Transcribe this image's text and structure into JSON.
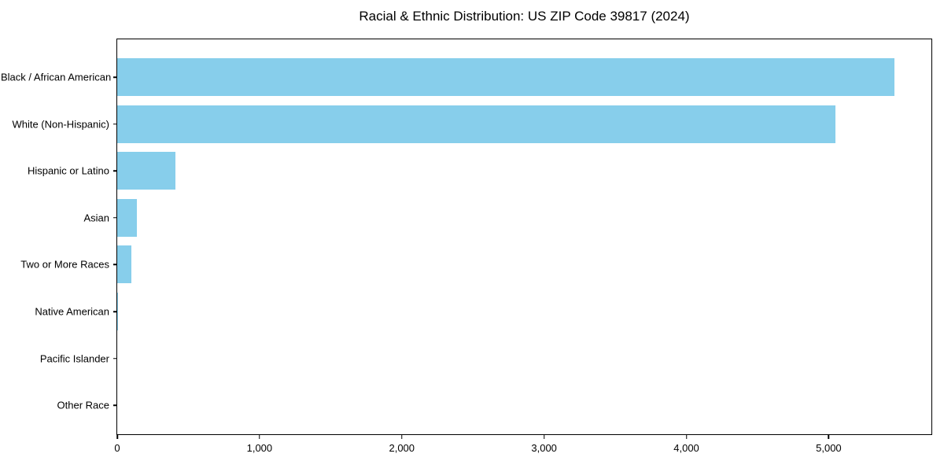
{
  "chart_data": {
    "type": "bar",
    "orientation": "horizontal",
    "title": "Racial & Ethnic Distribution: US ZIP Code 39817 (2024)",
    "categories": [
      "Black / African American",
      "White (Non-Hispanic)",
      "Hispanic or Latino",
      "Asian",
      "Two or More Races",
      "Native American",
      "Pacific Islander",
      "Other Race"
    ],
    "values": [
      5460,
      5050,
      410,
      140,
      98,
      6,
      0,
      0
    ],
    "xlabel": "",
    "ylabel": "",
    "xlim": [
      0,
      5733
    ],
    "xticks": [
      0,
      1000,
      2000,
      3000,
      4000,
      5000
    ],
    "xtick_labels": [
      "0",
      "1,000",
      "2,000",
      "3,000",
      "4,000",
      "5,000"
    ],
    "bar_color": "#87CEEB",
    "frame_color": "#000000",
    "text_color": "#000000",
    "background_color": "#ffffff",
    "grid": false,
    "legend_position": "none"
  }
}
